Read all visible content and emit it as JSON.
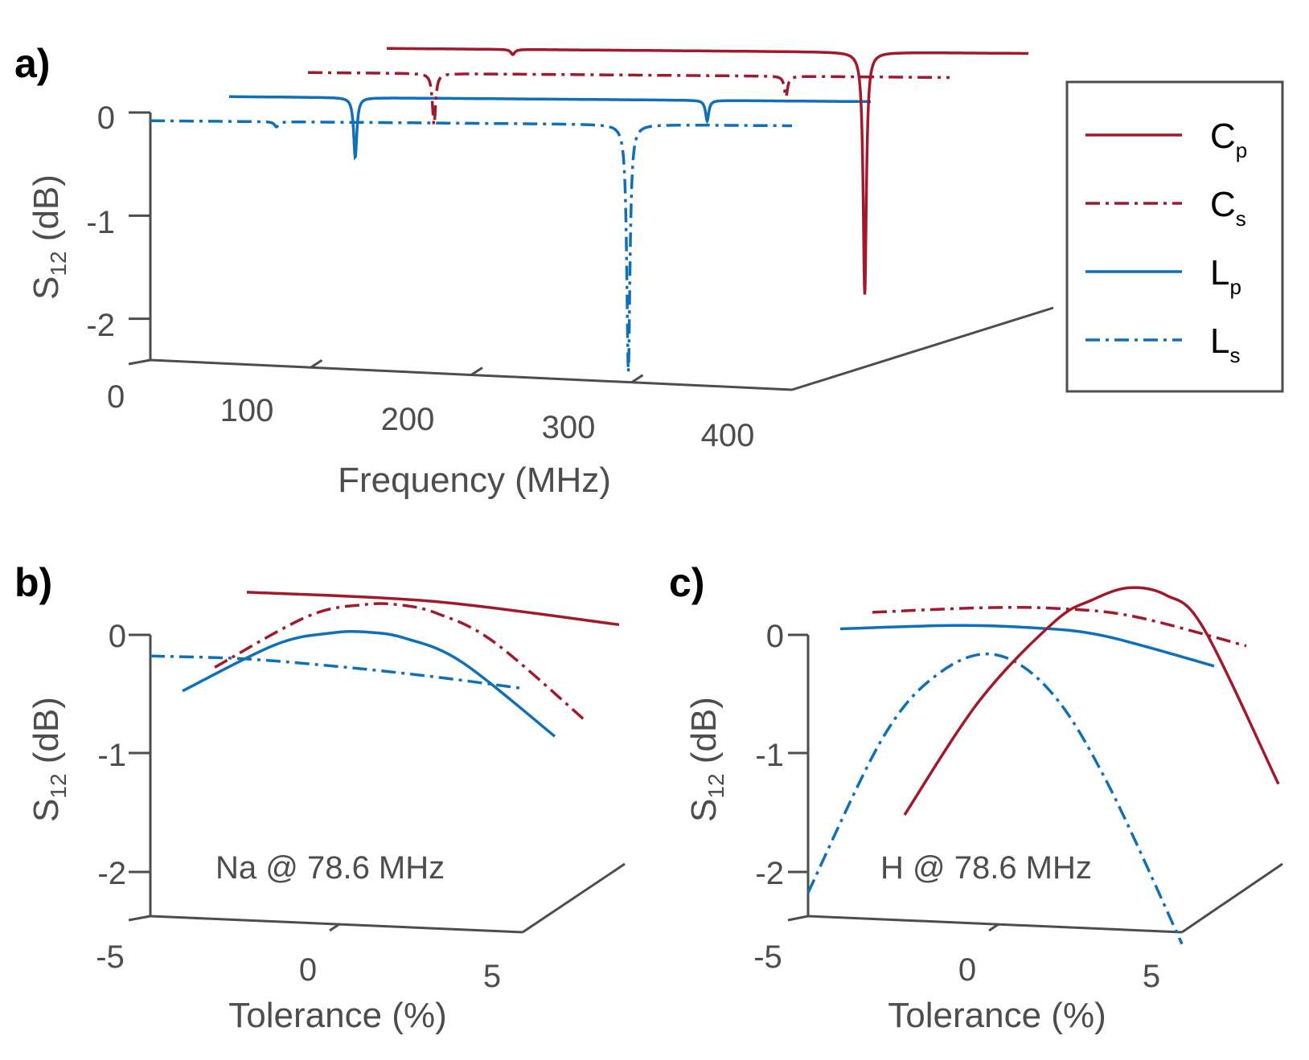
{
  "colors": {
    "red": "#a2192c",
    "blue": "#0f70b8",
    "axis": "#4d4d4d"
  },
  "panel_a": {
    "letter": "a)",
    "ylabel_main": "S",
    "ylabel_sub": "12",
    "ylabel_unit": " (dB)",
    "xlabel": "Frequency (MHz)",
    "y_ticks": [
      "0",
      "-1",
      "-2"
    ],
    "x_ticks": [
      "0",
      "100",
      "200",
      "300",
      "400"
    ]
  },
  "panel_b": {
    "letter": "b)",
    "ylabel_main": "S",
    "ylabel_sub": "12",
    "ylabel_unit": " (dB)",
    "xlabel": "Tolerance (%)",
    "y_ticks": [
      "0",
      "-1",
      "-2"
    ],
    "x_ticks": [
      "-5",
      "0",
      "5"
    ],
    "annotation": "Na @ 78.6 MHz"
  },
  "panel_c": {
    "letter": "c)",
    "ylabel_main": "S",
    "ylabel_sub": "12",
    "ylabel_unit": " (dB)",
    "xlabel": "Tolerance (%)",
    "y_ticks": [
      "0",
      "-1",
      "-2"
    ],
    "x_ticks": [
      "-5",
      "0",
      "5"
    ],
    "annotation": "H @ 78.6 MHz"
  },
  "legend": [
    {
      "main": "C",
      "sub": "p",
      "style": "solid",
      "color": "#a2192c"
    },
    {
      "main": "C",
      "sub": "s",
      "style": "dashdot",
      "color": "#a2192c"
    },
    {
      "main": "L",
      "sub": "p",
      "style": "solid",
      "color": "#0f70b8"
    },
    {
      "main": "L",
      "sub": "s",
      "style": "dashdot",
      "color": "#0f70b8"
    }
  ],
  "chart_data": [
    {
      "type": "line",
      "panel": "a",
      "title": "",
      "xlabel": "Frequency (MHz)",
      "ylabel": "S12 (dB)",
      "xlim": [
        0,
        400
      ],
      "ylim": [
        -2.4,
        0
      ],
      "series": [
        {
          "name": "Ls",
          "style": "dashdot",
          "color": "#0f70b8",
          "depth": 0,
          "x_range": [
            0,
            400
          ],
          "dips": [
            {
              "f": 78.6,
              "depth": 0.05,
              "width": 1.5
            },
            {
              "f": 298,
              "depth": 2.4,
              "width": 1.2
            }
          ]
        },
        {
          "name": "Lp",
          "style": "solid",
          "color": "#0f70b8",
          "depth": 1,
          "x_range": [
            0,
            400
          ],
          "dips": [
            {
              "f": 78.6,
              "depth": 0.58,
              "width": 1.2
            },
            {
              "f": 298,
              "depth": 0.2,
              "width": 1.2
            }
          ]
        },
        {
          "name": "Cs",
          "style": "dashdot",
          "color": "#a2192c",
          "depth": 2,
          "x_range": [
            0,
            400
          ],
          "dips": [
            {
              "f": 78.6,
              "depth": 0.5,
              "width": 1.2
            },
            {
              "f": 298,
              "depth": 0.2,
              "width": 1.2
            }
          ]
        },
        {
          "name": "Cp",
          "style": "solid",
          "color": "#a2192c",
          "depth": 3,
          "x_range": [
            0,
            400
          ],
          "dips": [
            {
              "f": 78.6,
              "depth": 0.05,
              "width": 1.5
            },
            {
              "f": 298,
              "depth": 2.35,
              "width": 1.2
            }
          ]
        }
      ]
    },
    {
      "type": "line",
      "panel": "b",
      "title": "Na @ 78.6 MHz",
      "xlabel": "Tolerance (%)",
      "ylabel": "S12 (dB)",
      "xlim": [
        -5,
        5
      ],
      "ylim": [
        -2.4,
        0
      ],
      "series": [
        {
          "name": "Ls",
          "style": "dashdot",
          "color": "#0f70b8",
          "depth": 0,
          "x": [
            -5,
            -2.5,
            0,
            2.5,
            5
          ],
          "y": [
            -0.18,
            -0.17,
            -0.2,
            -0.25,
            -0.32
          ]
        },
        {
          "name": "Lp",
          "style": "solid",
          "color": "#0f70b8",
          "depth": 1,
          "x": [
            -5,
            -2.5,
            -1,
            0,
            1,
            2.5,
            5
          ],
          "y": [
            -0.65,
            -0.22,
            -0.1,
            -0.08,
            -0.12,
            -0.3,
            -0.9
          ]
        },
        {
          "name": "Cs",
          "style": "dashdot",
          "color": "#a2192c",
          "depth": 2,
          "x": [
            -5,
            -2.5,
            -1,
            0,
            1,
            2.5,
            5
          ],
          "y": [
            -0.62,
            -0.15,
            -0.03,
            -0.02,
            -0.08,
            -0.3,
            -0.95
          ]
        },
        {
          "name": "Cp",
          "style": "solid",
          "color": "#a2192c",
          "depth": 3,
          "x": [
            -5,
            0,
            5
          ],
          "y": [
            -0.15,
            -0.16,
            -0.29
          ]
        }
      ]
    },
    {
      "type": "line",
      "panel": "c",
      "title": "H @ 78.6 MHz",
      "xlabel": "Tolerance (%)",
      "ylabel": "S12 (dB)",
      "xlim": [
        -5,
        5
      ],
      "ylim": [
        -2.4,
        0
      ],
      "series": [
        {
          "name": "Ls",
          "style": "dashdot",
          "color": "#0f70b8",
          "depth": 0,
          "x": [
            -5,
            -3,
            -1.5,
            0,
            1.5,
            3,
            5
          ],
          "y": [
            -2.2,
            -0.85,
            -0.28,
            -0.1,
            -0.4,
            -1.15,
            -2.5
          ]
        },
        {
          "name": "Lp",
          "style": "solid",
          "color": "#0f70b8",
          "depth": 1,
          "x": [
            -5,
            -2,
            0,
            2,
            5
          ],
          "y": [
            -0.12,
            -0.05,
            -0.04,
            -0.08,
            -0.3
          ]
        },
        {
          "name": "Cs",
          "style": "dashdot",
          "color": "#a2192c",
          "depth": 2,
          "x": [
            -5,
            -2,
            0,
            2,
            5
          ],
          "y": [
            -0.15,
            -0.07,
            -0.05,
            -0.09,
            -0.3
          ]
        },
        {
          "name": "Cp",
          "style": "solid",
          "color": "#a2192c",
          "depth": 3,
          "x": [
            -5,
            -3,
            -1,
            0,
            1,
            2,
            3,
            5
          ],
          "y": [
            -2.05,
            -1.05,
            -0.35,
            -0.15,
            -0.03,
            -0.08,
            -0.35,
            -1.65
          ]
        }
      ]
    }
  ]
}
